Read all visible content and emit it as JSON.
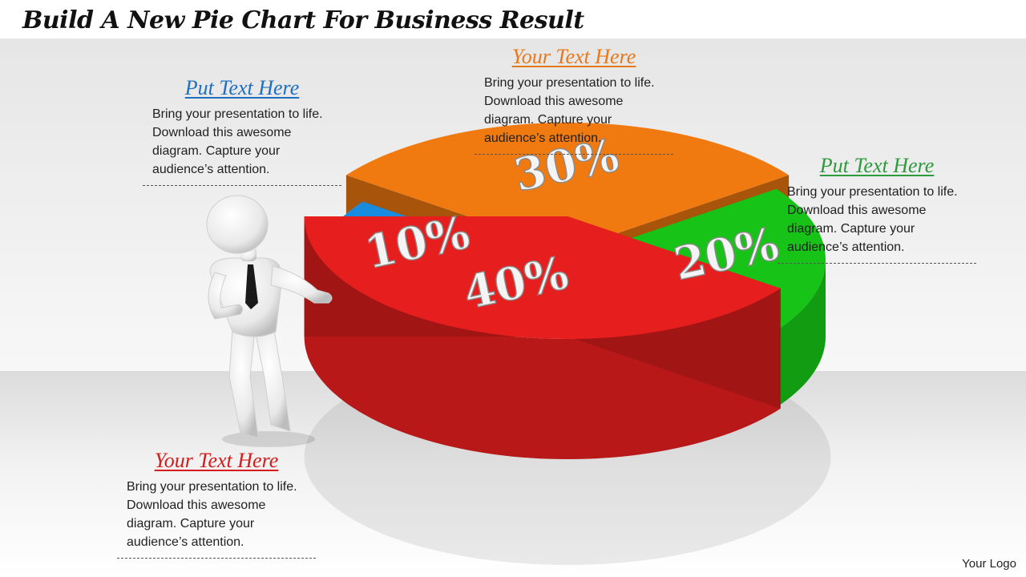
{
  "slide": {
    "title": "Build A New Pie Chart For Business Result",
    "logo": "Your Logo"
  },
  "callouts": [
    {
      "heading": "Put Text Here",
      "color": "#1f6fc1",
      "body": "Bring your presentation to life. Download this awesome diagram. Capture your audience’s attention."
    },
    {
      "heading": "Your Text Here",
      "color": "#e8781a",
      "body": "Bring your presentation to life. Download this awesome diagram. Capture your audience’s attention."
    },
    {
      "heading": "Put Text Here",
      "color": "#2e9a3e",
      "body": "Bring your presentation to life. Download this awesome diagram. Capture your audience’s attention."
    },
    {
      "heading": "Your Text Here",
      "color": "#d51b1b",
      "body": "Bring your presentation to life. Download this awesome diagram. Capture your audience’s attention."
    }
  ],
  "chart_data": {
    "type": "pie",
    "title": "",
    "slices": [
      {
        "label": "10%",
        "value": 10,
        "color": "#1a8ce0"
      },
      {
        "label": "30%",
        "value": 30,
        "color": "#f07a10"
      },
      {
        "label": "20%",
        "value": 20,
        "color": "#16c316"
      },
      {
        "label": "40%",
        "value": 40,
        "color": "#e61e1e"
      }
    ]
  }
}
